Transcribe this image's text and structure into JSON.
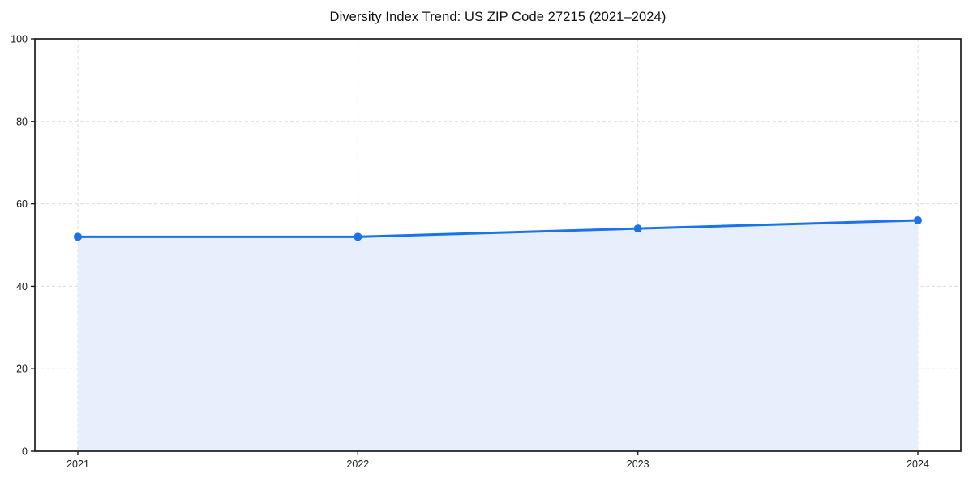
{
  "title": "Diversity Index Trend: US ZIP Code 27215 (2021–2024)",
  "chart_data": {
    "type": "line",
    "title": "Diversity Index Trend: US ZIP Code 27215 (2021–2024)",
    "categories": [
      "2021",
      "2022",
      "2023",
      "2024"
    ],
    "series": [
      {
        "name": "Diversity Index",
        "values": [
          52,
          52,
          54,
          56
        ]
      }
    ],
    "xlabel": "",
    "ylabel": "",
    "ylim": [
      0,
      100
    ],
    "yticks": [
      0,
      20,
      40,
      60,
      80,
      100
    ],
    "grid": "dashed",
    "legend_position": "none",
    "area_fill": true,
    "colors": {
      "line": "#1a73e8",
      "marker": "#1a73e8",
      "fill": "#e8effc",
      "gridline": "#dcdcdc",
      "spine": "#1a1a1a",
      "tick_label": "#1a1a1a"
    }
  }
}
